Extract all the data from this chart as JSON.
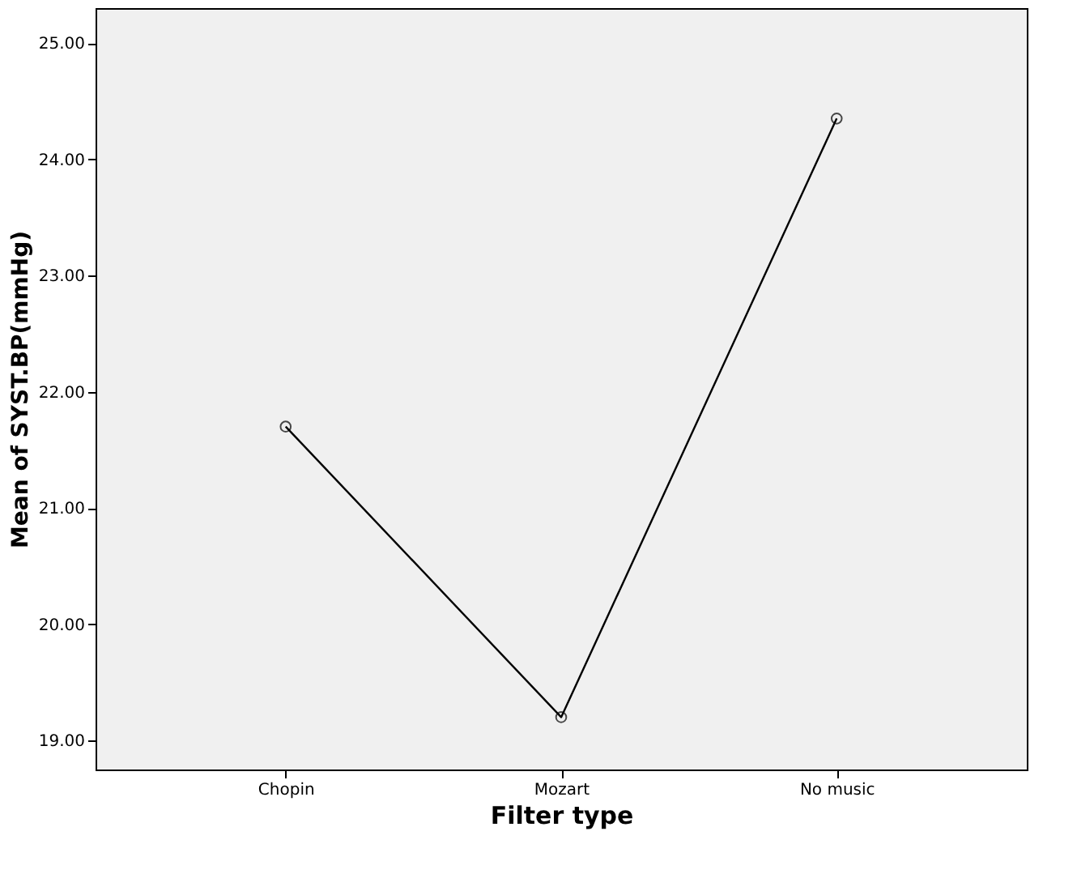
{
  "chart_data": {
    "type": "line",
    "xlabel": "Filter type",
    "ylabel": "Mean of SYST.BP(mmHg)",
    "categories": [
      "Chopin",
      "Mozart",
      "No music"
    ],
    "series": [
      {
        "color": "#000000",
        "values": [
          21.7,
          19.2,
          24.35
        ]
      }
    ],
    "ylim": [
      18.75,
      25.3
    ],
    "yticks": [
      {
        "value": 19,
        "label": "19.00"
      },
      {
        "value": 20,
        "label": "20.00"
      },
      {
        "value": 21,
        "label": "21.00"
      },
      {
        "value": 22,
        "label": "22.00"
      },
      {
        "value": 23,
        "label": "23.00"
      },
      {
        "value": 24,
        "label": "24.00"
      },
      {
        "value": 25,
        "label": "25.00"
      }
    ],
    "marker": "circle",
    "line_style": "solid"
  }
}
